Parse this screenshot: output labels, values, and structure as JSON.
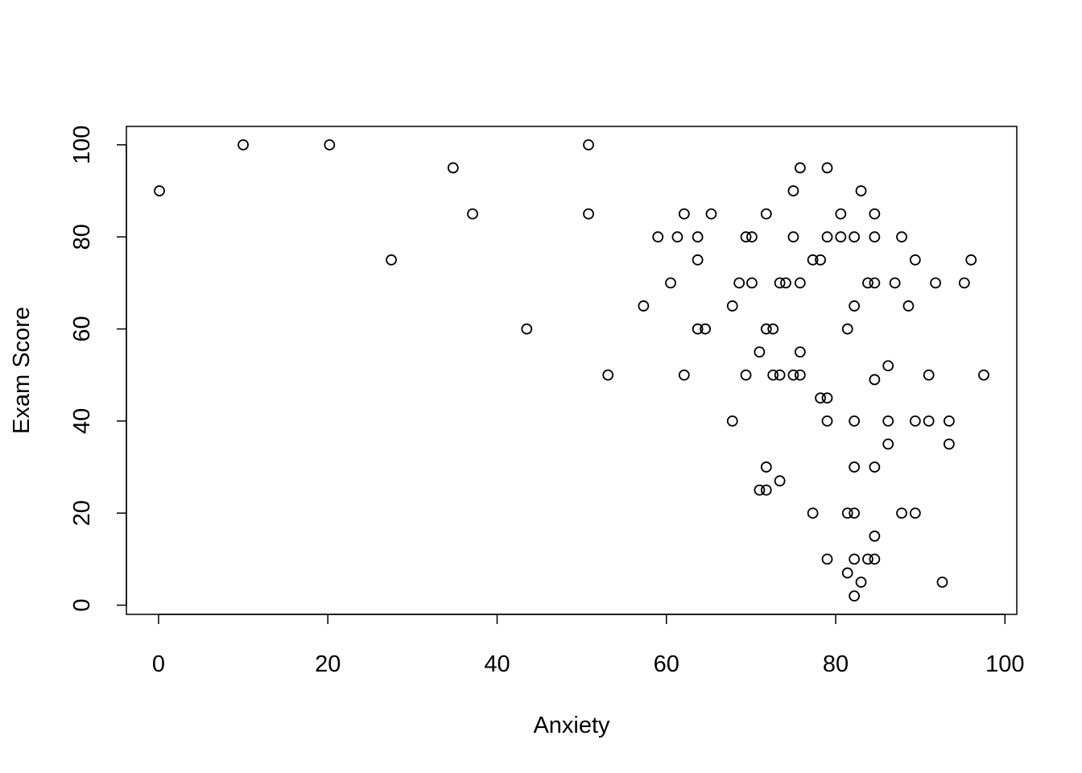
{
  "chart_data": {
    "type": "scatter",
    "title": "",
    "xlabel": "Anxiety",
    "ylabel": "Exam Score",
    "xlim": [
      -3.8,
      101.4
    ],
    "ylim": [
      -2.0,
      104.0
    ],
    "x_ticks": [
      0,
      20,
      40,
      60,
      80,
      100
    ],
    "y_ticks": [
      0,
      20,
      40,
      60,
      80,
      100
    ],
    "grid": false,
    "legend": "none",
    "marker": "open-circle",
    "colors": {
      "marker": "#000000",
      "axis": "#000000",
      "background": "#ffffff"
    },
    "points": [
      {
        "x": 0.1,
        "y": 90
      },
      {
        "x": 10.0,
        "y": 100
      },
      {
        "x": 20.2,
        "y": 100
      },
      {
        "x": 27.5,
        "y": 75
      },
      {
        "x": 34.8,
        "y": 95
      },
      {
        "x": 37.1,
        "y": 85
      },
      {
        "x": 43.5,
        "y": 60
      },
      {
        "x": 50.8,
        "y": 100
      },
      {
        "x": 50.8,
        "y": 85
      },
      {
        "x": 53.1,
        "y": 50
      },
      {
        "x": 57.3,
        "y": 65
      },
      {
        "x": 59.0,
        "y": 80
      },
      {
        "x": 60.5,
        "y": 70
      },
      {
        "x": 61.3,
        "y": 80
      },
      {
        "x": 62.1,
        "y": 85
      },
      {
        "x": 62.1,
        "y": 50
      },
      {
        "x": 63.7,
        "y": 80
      },
      {
        "x": 63.7,
        "y": 75
      },
      {
        "x": 63.7,
        "y": 60
      },
      {
        "x": 64.6,
        "y": 60
      },
      {
        "x": 65.3,
        "y": 85
      },
      {
        "x": 67.8,
        "y": 65
      },
      {
        "x": 67.8,
        "y": 40
      },
      {
        "x": 68.6,
        "y": 70
      },
      {
        "x": 69.4,
        "y": 80
      },
      {
        "x": 69.4,
        "y": 50
      },
      {
        "x": 70.1,
        "y": 80
      },
      {
        "x": 70.1,
        "y": 70
      },
      {
        "x": 71.0,
        "y": 55
      },
      {
        "x": 71.0,
        "y": 25
      },
      {
        "x": 71.8,
        "y": 85
      },
      {
        "x": 71.8,
        "y": 60
      },
      {
        "x": 71.8,
        "y": 30
      },
      {
        "x": 71.8,
        "y": 25
      },
      {
        "x": 72.6,
        "y": 60
      },
      {
        "x": 72.6,
        "y": 50
      },
      {
        "x": 73.4,
        "y": 70
      },
      {
        "x": 73.4,
        "y": 50
      },
      {
        "x": 73.4,
        "y": 27
      },
      {
        "x": 74.1,
        "y": 70
      },
      {
        "x": 75.0,
        "y": 90
      },
      {
        "x": 75.0,
        "y": 80
      },
      {
        "x": 75.0,
        "y": 50
      },
      {
        "x": 75.8,
        "y": 95
      },
      {
        "x": 75.8,
        "y": 70
      },
      {
        "x": 75.8,
        "y": 55
      },
      {
        "x": 75.8,
        "y": 50
      },
      {
        "x": 77.3,
        "y": 75
      },
      {
        "x": 77.3,
        "y": 20
      },
      {
        "x": 78.2,
        "y": 75
      },
      {
        "x": 78.2,
        "y": 45
      },
      {
        "x": 79.0,
        "y": 95
      },
      {
        "x": 79.0,
        "y": 80
      },
      {
        "x": 79.0,
        "y": 45
      },
      {
        "x": 79.0,
        "y": 40
      },
      {
        "x": 79.0,
        "y": 10
      },
      {
        "x": 80.6,
        "y": 85
      },
      {
        "x": 80.6,
        "y": 80
      },
      {
        "x": 81.4,
        "y": 60
      },
      {
        "x": 81.4,
        "y": 20
      },
      {
        "x": 81.4,
        "y": 7
      },
      {
        "x": 82.2,
        "y": 80
      },
      {
        "x": 82.2,
        "y": 65
      },
      {
        "x": 82.2,
        "y": 40
      },
      {
        "x": 82.2,
        "y": 30
      },
      {
        "x": 82.2,
        "y": 20
      },
      {
        "x": 82.2,
        "y": 10
      },
      {
        "x": 82.2,
        "y": 2
      },
      {
        "x": 83.0,
        "y": 90
      },
      {
        "x": 83.0,
        "y": 5
      },
      {
        "x": 83.8,
        "y": 70
      },
      {
        "x": 83.8,
        "y": 10
      },
      {
        "x": 84.6,
        "y": 85
      },
      {
        "x": 84.6,
        "y": 80
      },
      {
        "x": 84.6,
        "y": 70
      },
      {
        "x": 84.6,
        "y": 49
      },
      {
        "x": 84.6,
        "y": 30
      },
      {
        "x": 84.6,
        "y": 15
      },
      {
        "x": 84.6,
        "y": 10
      },
      {
        "x": 86.2,
        "y": 52
      },
      {
        "x": 86.2,
        "y": 40
      },
      {
        "x": 86.2,
        "y": 35
      },
      {
        "x": 87.0,
        "y": 70
      },
      {
        "x": 87.8,
        "y": 80
      },
      {
        "x": 87.8,
        "y": 20
      },
      {
        "x": 88.6,
        "y": 65
      },
      {
        "x": 89.4,
        "y": 75
      },
      {
        "x": 89.4,
        "y": 40
      },
      {
        "x": 89.4,
        "y": 20
      },
      {
        "x": 91.0,
        "y": 50
      },
      {
        "x": 91.0,
        "y": 40
      },
      {
        "x": 91.8,
        "y": 70
      },
      {
        "x": 92.6,
        "y": 5
      },
      {
        "x": 93.4,
        "y": 40
      },
      {
        "x": 93.4,
        "y": 35
      },
      {
        "x": 95.2,
        "y": 70
      },
      {
        "x": 96.0,
        "y": 75
      },
      {
        "x": 97.5,
        "y": 50
      }
    ]
  }
}
